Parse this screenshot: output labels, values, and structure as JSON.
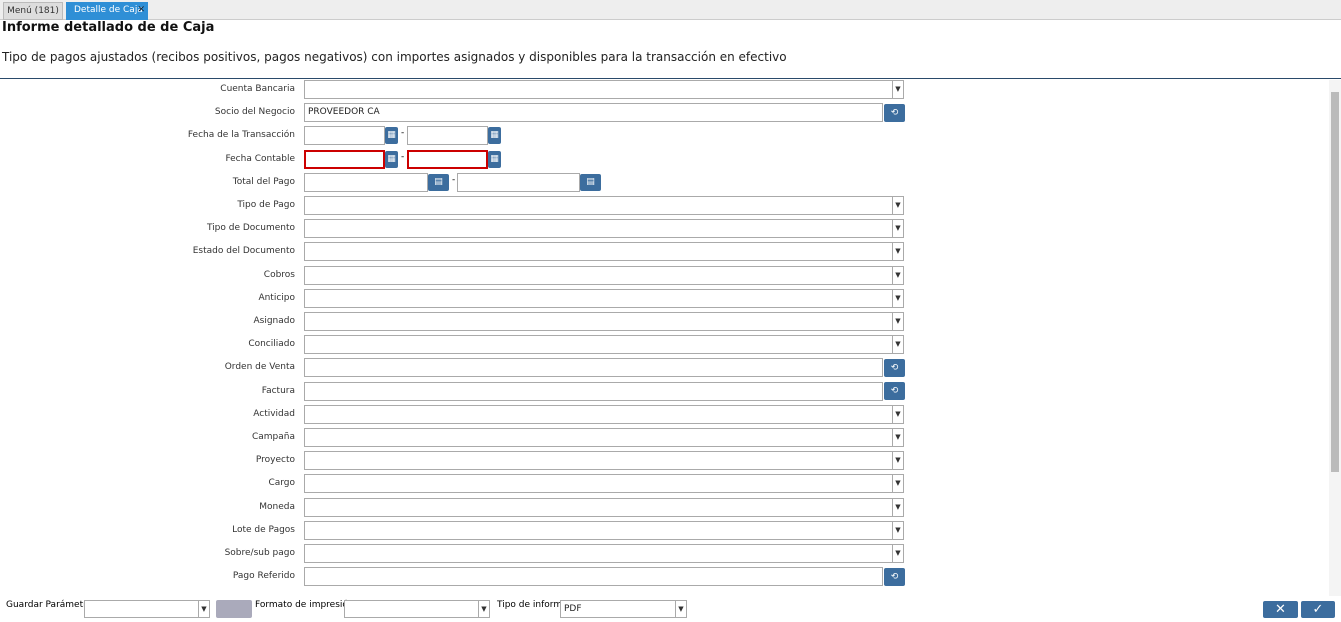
{
  "tabs": [
    "Menú (181)",
    "Detalle de Caja"
  ],
  "header": {
    "title": "Informe detallado de de Caja",
    "description": "Tipo de pagos ajustados (recibos positivos, pagos negativos) con importes asignados y disponibles para la transacción en efectivo"
  },
  "fields": [
    {
      "label": "Cuenta Bancaria"
    },
    {
      "label": "Socio del Negocio",
      "value": "PROVEEDOR CA"
    },
    {
      "label": "Fecha de la Transacción"
    },
    {
      "label": "Fecha Contable"
    },
    {
      "label": "Total del Pago"
    },
    {
      "label": "Tipo de Pago"
    },
    {
      "label": "Tipo de Documento"
    },
    {
      "label": "Estado del Documento"
    },
    {
      "label": "Cobros"
    },
    {
      "label": "Anticipo"
    },
    {
      "label": "Asignado"
    },
    {
      "label": "Conciliado"
    },
    {
      "label": "Orden de Venta"
    },
    {
      "label": "Factura"
    },
    {
      "label": "Actividad"
    },
    {
      "label": "Campaña"
    },
    {
      "label": "Proyecto"
    },
    {
      "label": "Cargo"
    },
    {
      "label": "Moneda"
    },
    {
      "label": "Lote de Pagos"
    },
    {
      "label": "Sobre/sub pago"
    },
    {
      "label": "Pago Referido"
    }
  ],
  "footer": {
    "save_label": "Guardar Parámetro",
    "format_label": "Formato de impresión",
    "report_type_label": "Tipo de informe",
    "report_type_value": "PDF"
  }
}
